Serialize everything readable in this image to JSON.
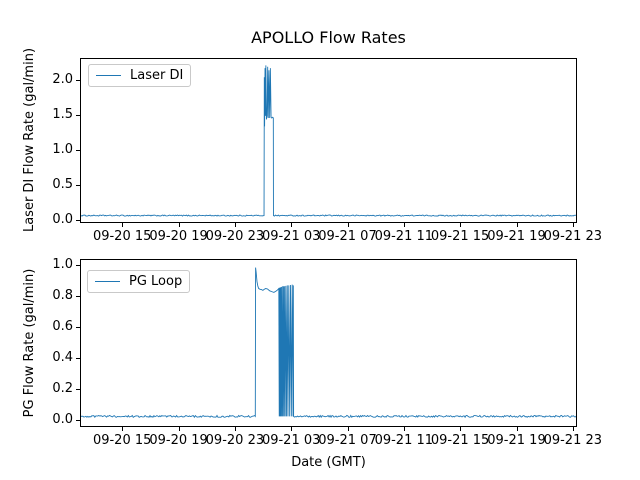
{
  "figure": {
    "title": "APOLLO Flow Rates",
    "xlabel": "Date (GMT)",
    "line_color": "#1f77b4",
    "spine_color": "#000000",
    "background": "#ffffff"
  },
  "chart_data": [
    {
      "type": "line",
      "title": "APOLLO Flow Rates",
      "ylabel": "Laser DI Flow Rate (gal/min)",
      "xlabel": "",
      "legend": [
        "Laser DI"
      ],
      "legend_position": "upper left",
      "grid": false,
      "color": "#1f77b4",
      "x_unit": "hours since 09-20 00:00 GMT",
      "xlim": [
        12.0,
        47.3
      ],
      "ylim": [
        -0.04,
        2.31
      ],
      "yticks": [
        "0.0",
        "0.5",
        "1.0",
        "1.5",
        "2.0"
      ],
      "ytick_values": [
        0.0,
        0.5,
        1.0,
        1.5,
        2.0
      ],
      "xtick_values": [
        15,
        19,
        23,
        27,
        31,
        35,
        39,
        43,
        47
      ],
      "xtick_labels": [
        "09-20 15",
        "09-20 19",
        "09-20 23",
        "09-21 03",
        "09-21 07",
        "09-21 11",
        "09-21 15",
        "09-21 19",
        "09-21 23"
      ],
      "baseline_value": 0.08,
      "noise_amp": 0.008,
      "points": [
        [
          12.0,
          0.08
        ],
        [
          25.0,
          0.08
        ],
        [
          25.02,
          2.05
        ],
        [
          25.04,
          1.35
        ],
        [
          25.07,
          2.18
        ],
        [
          25.1,
          1.5
        ],
        [
          25.13,
          2.22
        ],
        [
          25.17,
          1.45
        ],
        [
          25.22,
          1.5
        ],
        [
          25.26,
          2.2
        ],
        [
          25.3,
          1.47
        ],
        [
          25.35,
          2.15
        ],
        [
          25.4,
          1.47
        ],
        [
          25.45,
          2.18
        ],
        [
          25.5,
          1.48
        ],
        [
          25.55,
          1.47
        ],
        [
          25.62,
          1.48
        ],
        [
          25.66,
          1.47
        ],
        [
          25.67,
          0.08
        ],
        [
          47.3,
          0.08
        ]
      ]
    },
    {
      "type": "line",
      "title": "",
      "ylabel": "PG Flow Rate (gal/min)",
      "xlabel": "Date (GMT)",
      "legend": [
        "PG Loop"
      ],
      "legend_position": "upper left",
      "grid": false,
      "color": "#1f77b4",
      "x_unit": "hours since 09-20 00:00 GMT",
      "xlim": [
        12.0,
        47.3
      ],
      "ylim": [
        -0.045,
        1.039
      ],
      "yticks": [
        "0.0",
        "0.2",
        "0.4",
        "0.6",
        "0.8",
        "1.0"
      ],
      "ytick_values": [
        0.0,
        0.2,
        0.4,
        0.6,
        0.8,
        1.0
      ],
      "xtick_values": [
        15,
        19,
        23,
        27,
        31,
        35,
        39,
        43,
        47
      ],
      "xtick_labels": [
        "09-20 15",
        "09-20 19",
        "09-20 23",
        "09-21 03",
        "09-21 07",
        "09-21 11",
        "09-21 15",
        "09-21 19",
        "09-21 23"
      ],
      "baseline_value": 0.03,
      "noise_amp": 0.006,
      "points": [
        [
          12.0,
          0.03
        ],
        [
          24.38,
          0.03
        ],
        [
          24.4,
          0.99
        ],
        [
          24.44,
          0.96
        ],
        [
          24.5,
          0.9
        ],
        [
          24.56,
          0.87
        ],
        [
          24.62,
          0.855
        ],
        [
          24.72,
          0.85
        ],
        [
          24.82,
          0.848
        ],
        [
          24.92,
          0.843
        ],
        [
          25.02,
          0.85
        ],
        [
          25.12,
          0.855
        ],
        [
          25.25,
          0.852
        ],
        [
          25.4,
          0.84
        ],
        [
          25.55,
          0.835
        ],
        [
          25.7,
          0.83
        ],
        [
          25.85,
          0.838
        ],
        [
          25.95,
          0.845
        ],
        [
          26.05,
          0.855
        ],
        [
          26.08,
          0.03
        ],
        [
          26.11,
          0.86
        ],
        [
          26.14,
          0.03
        ],
        [
          26.17,
          0.862
        ],
        [
          26.2,
          0.03
        ],
        [
          26.23,
          0.865
        ],
        [
          26.27,
          0.03
        ],
        [
          26.3,
          0.87
        ],
        [
          26.34,
          0.03
        ],
        [
          26.38,
          0.87
        ],
        [
          26.42,
          0.03
        ],
        [
          26.46,
          0.87
        ],
        [
          26.5,
          0.03
        ],
        [
          26.55,
          0.872
        ],
        [
          26.6,
          0.03
        ],
        [
          26.65,
          0.875
        ],
        [
          26.7,
          0.03
        ],
        [
          26.76,
          0.875
        ],
        [
          26.82,
          0.03
        ],
        [
          26.88,
          0.878
        ],
        [
          26.94,
          0.03
        ],
        [
          27.0,
          0.88
        ],
        [
          27.06,
          0.03
        ],
        [
          27.08,
          0.875
        ],
        [
          27.1,
          0.03
        ],
        [
          47.3,
          0.03
        ]
      ]
    }
  ]
}
